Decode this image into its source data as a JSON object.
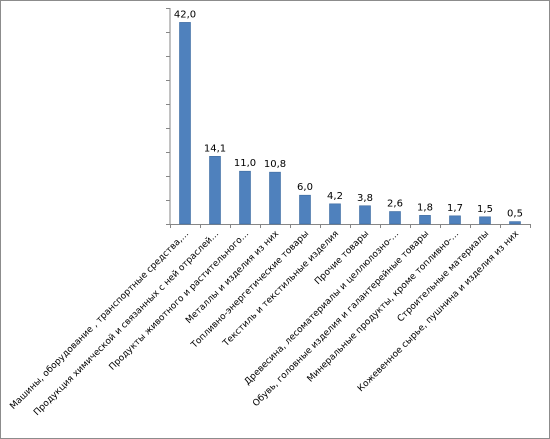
{
  "chart_data": {
    "type": "bar",
    "title": "",
    "xlabel": "",
    "ylabel": "",
    "ylim": [
      0,
      45
    ],
    "grid": false,
    "legend": "none",
    "bar_color": "#4F81BD",
    "categories": [
      "Машины, оборудование , транспортные средства,…",
      "Продукция химической и связанных с ней отраслей…",
      "Продукты животного и растительного…",
      "Металлы и изделия из них",
      "Топливно-энергетические товары",
      "Текстиль и текстильные изделия",
      "Прочие товары",
      "Древесина, лесоматериалы и целлюлозно-…",
      "Обувь, головные изделия и галантерейные товары",
      "Минеральные продукты, кроме топливно-…",
      "Строительные материалы",
      "Кожевенное сырье, пушнина и изделия из них"
    ],
    "values": [
      42.0,
      14.1,
      11.0,
      10.8,
      6.0,
      4.2,
      3.8,
      2.6,
      1.8,
      1.7,
      1.5,
      0.5
    ],
    "value_labels": [
      "42,0",
      "14,1",
      "11,0",
      "10,8",
      "6,0",
      "4,2",
      "3,8",
      "2,6",
      "1,8",
      "1,7",
      "1,5",
      "0,5"
    ]
  }
}
